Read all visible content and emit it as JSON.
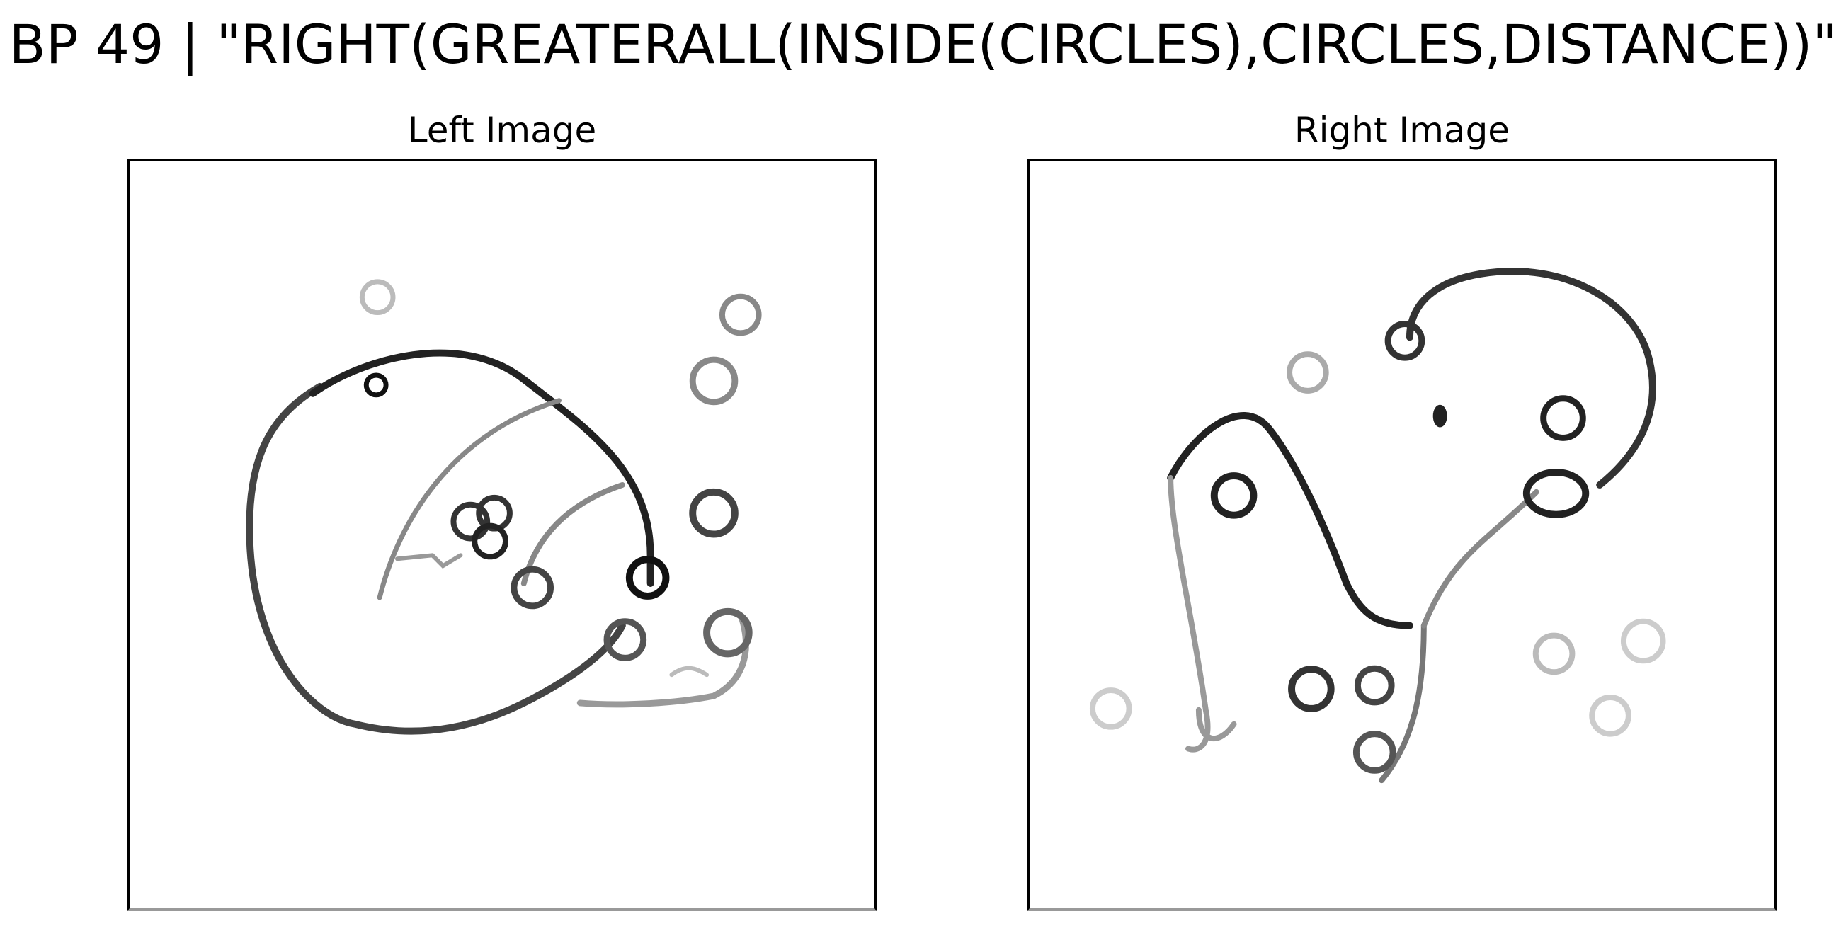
{
  "title": "BP 49 | \"RIGHT(GREATERALL(INSIDE(CIRCLES),CIRCLES,DISTANCE))\"",
  "panels": {
    "left": {
      "title": "Left Image"
    },
    "right": {
      "title": "Right Image"
    }
  },
  "colors": {
    "background": "#ffffff",
    "stroke_dark": "#111111",
    "stroke_mid": "#555555",
    "stroke_light": "#aaaaaa"
  }
}
